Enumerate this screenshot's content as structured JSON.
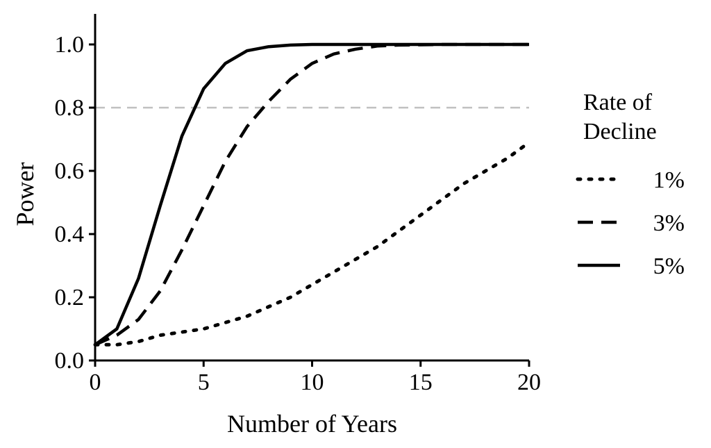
{
  "chart_data": {
    "type": "line",
    "xlabel": "Number of Years",
    "ylabel": "Power",
    "xlim": [
      0,
      20
    ],
    "ylim": [
      0,
      1.08
    ],
    "xticks": [
      0,
      5,
      10,
      15,
      20
    ],
    "xtick_labels": [
      "0",
      "5",
      "10",
      "15",
      "20"
    ],
    "yticks": [
      0.0,
      0.2,
      0.4,
      0.6,
      0.8,
      1.0
    ],
    "ytick_labels": [
      "0.0",
      "0.2",
      "0.4",
      "0.6",
      "0.8",
      "1.0"
    ],
    "reference_line": {
      "y": 0.8,
      "style": "dashed",
      "color": "#c0c0c0"
    },
    "grid": false,
    "legend": {
      "title_lines": [
        "Rate of",
        "Decline"
      ],
      "placement": "right"
    },
    "series": [
      {
        "name": "1%",
        "style": "dotted",
        "color": "#000000",
        "x": [
          0,
          1,
          2,
          3,
          4,
          5,
          6,
          7,
          8,
          9,
          10,
          11,
          12,
          13,
          14,
          15,
          16,
          17,
          18,
          19,
          20
        ],
        "y": [
          0.05,
          0.05,
          0.06,
          0.08,
          0.09,
          0.1,
          0.12,
          0.14,
          0.17,
          0.2,
          0.24,
          0.28,
          0.32,
          0.36,
          0.41,
          0.46,
          0.51,
          0.56,
          0.6,
          0.64,
          0.69
        ]
      },
      {
        "name": "3%",
        "style": "dashed",
        "color": "#000000",
        "x": [
          0,
          1,
          2,
          3,
          4,
          5,
          6,
          7,
          8,
          9,
          10,
          11,
          12,
          13,
          14,
          15,
          16,
          17,
          18,
          19,
          20
        ],
        "y": [
          0.05,
          0.08,
          0.13,
          0.22,
          0.35,
          0.49,
          0.63,
          0.74,
          0.82,
          0.89,
          0.94,
          0.97,
          0.985,
          0.995,
          0.998,
          0.999,
          1.0,
          1.0,
          1.0,
          1.0,
          1.0
        ]
      },
      {
        "name": "5%",
        "style": "solid",
        "color": "#000000",
        "x": [
          0,
          1,
          2,
          3,
          4,
          5,
          6,
          7,
          8,
          9,
          10,
          11,
          12,
          13,
          14,
          15,
          16,
          17,
          18,
          19,
          20
        ],
        "y": [
          0.05,
          0.1,
          0.26,
          0.49,
          0.71,
          0.86,
          0.94,
          0.98,
          0.993,
          0.998,
          1.0,
          1.0,
          1.0,
          1.0,
          1.0,
          1.0,
          1.0,
          1.0,
          1.0,
          1.0,
          1.0
        ]
      }
    ]
  }
}
